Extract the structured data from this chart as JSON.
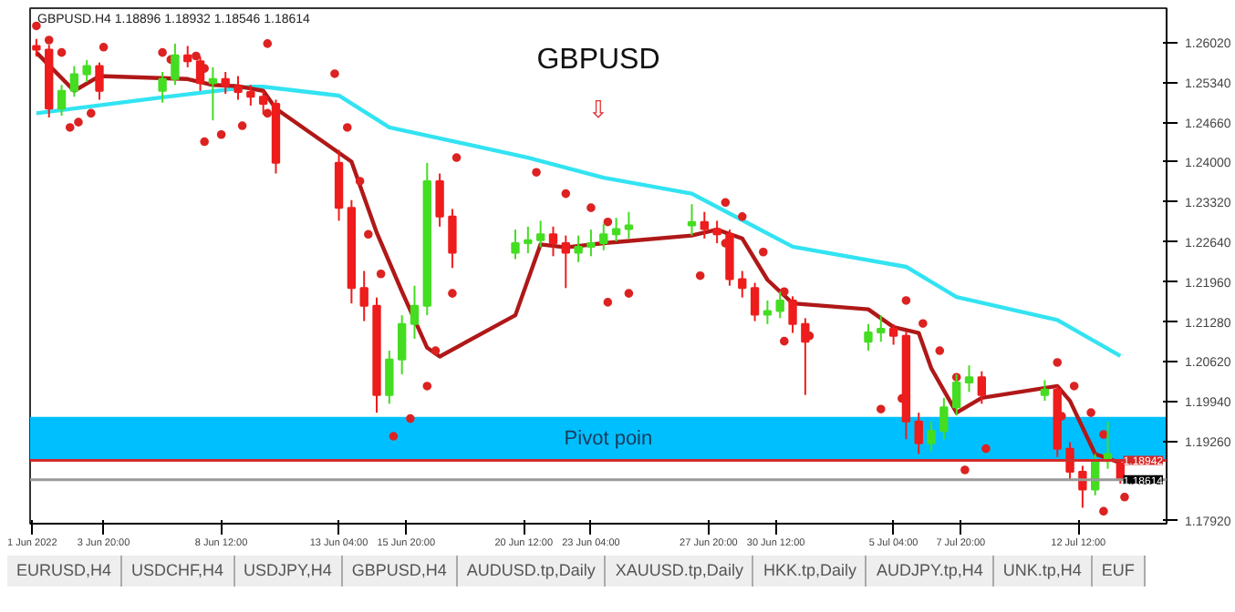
{
  "chart_data": {
    "type": "candlestick",
    "title": "GBPUSD",
    "annotations": [
      "GBPUSD.H4 1.18896 1.18932 1.18546 1.18614",
      "⇩",
      "EURUSD,H4",
      "USDCHF,H4",
      "USDJPY,H4",
      "GBPUSD,H4",
      "AUDUSD.tp,Daily",
      "XAUUSD.tp,Daily",
      "HKK.tp,Daily",
      "AUDJPY.tp,H4",
      "UNK.tp,H4",
      "EUF"
    ],
    "x": [
      "2022-06-01T04:00",
      "2022-06-01T16:00",
      "2022-06-02T04:00",
      "2022-06-02T16:00",
      "2022-06-03T04:00",
      "2022-06-03T16:00",
      "2022-06-06T04:00",
      "2022-06-06T16:00",
      "2022-06-07T04:00",
      "2022-06-07T16:00",
      "2022-06-08T04:00",
      "2022-06-08T16:00",
      "2022-06-09T04:00",
      "2022-06-09T16:00",
      "2022-06-10T04:00",
      "2022-06-10T16:00",
      "2022-06-13T04:00",
      "2022-06-13T16:00",
      "2022-06-14T04:00",
      "2022-06-14T16:00",
      "2022-06-15T04:00",
      "2022-06-15T16:00",
      "2022-06-16T04:00",
      "2022-06-16T16:00",
      "2022-06-17T04:00",
      "2022-06-17T16:00",
      "2022-06-20T04:00",
      "2022-06-20T16:00",
      "2022-06-21T04:00",
      "2022-06-21T16:00",
      "2022-06-22T04:00",
      "2022-06-22T16:00",
      "2022-06-23T04:00",
      "2022-06-23T16:00",
      "2022-06-24T04:00",
      "2022-06-24T16:00",
      "2022-06-27T04:00",
      "2022-06-27T16:00",
      "2022-06-28T04:00",
      "2022-06-28T16:00",
      "2022-06-29T04:00",
      "2022-06-29T16:00",
      "2022-06-30T04:00",
      "2022-06-30T16:00",
      "2022-07-01T04:00",
      "2022-07-01T16:00",
      "2022-07-04T04:00",
      "2022-07-04T16:00",
      "2022-07-05T04:00",
      "2022-07-05T16:00",
      "2022-07-06T04:00",
      "2022-07-06T16:00",
      "2022-07-07T04:00",
      "2022-07-07T16:00",
      "2022-07-08T04:00",
      "2022-07-08T16:00",
      "2022-07-11T04:00",
      "2022-07-11T16:00",
      "2022-07-12T04:00",
      "2022-07-12T16:00",
      "2022-07-13T04:00",
      "2022-07-13T16:00",
      "2022-07-14T04:00"
    ],
    "ohlc": [
      [
        1.2596,
        1.2608,
        1.2578,
        1.259
      ],
      [
        1.259,
        1.2598,
        1.2475,
        1.249
      ],
      [
        1.249,
        1.253,
        1.2478,
        1.252
      ],
      [
        1.252,
        1.2562,
        1.251,
        1.2548
      ],
      [
        1.2548,
        1.2572,
        1.2535,
        1.2562
      ],
      [
        1.2562,
        1.2568,
        1.2505,
        1.252
      ],
      [
        1.252,
        1.2552,
        1.25,
        1.254
      ],
      [
        1.254,
        1.26,
        1.253,
        1.258
      ],
      [
        1.258,
        1.2596,
        1.256,
        1.257
      ],
      [
        1.257,
        1.2578,
        1.252,
        1.2533
      ],
      [
        1.2533,
        1.256,
        1.247,
        1.254
      ],
      [
        1.254,
        1.2552,
        1.2515,
        1.2528
      ],
      [
        1.2528,
        1.2545,
        1.2505,
        1.2518
      ],
      [
        1.2518,
        1.253,
        1.2495,
        1.251
      ],
      [
        1.251,
        1.252,
        1.248,
        1.2498
      ],
      [
        1.2498,
        1.2505,
        1.238,
        1.2398
      ],
      [
        1.2398,
        1.242,
        1.23,
        1.2322
      ],
      [
        1.2322,
        1.2335,
        1.216,
        1.2186
      ],
      [
        1.2186,
        1.2215,
        1.213,
        1.2156
      ],
      [
        1.2156,
        1.217,
        1.1975,
        1.2005
      ],
      [
        1.2005,
        1.208,
        1.199,
        1.2065
      ],
      [
        1.2065,
        1.214,
        1.204,
        1.2125
      ],
      [
        1.2125,
        1.219,
        1.21,
        1.2156
      ],
      [
        1.2156,
        1.2398,
        1.214,
        1.2367
      ],
      [
        1.2367,
        1.238,
        1.229,
        1.2307
      ],
      [
        1.2307,
        1.232,
        1.222,
        1.2246
      ],
      [
        1.2246,
        1.2285,
        1.2235,
        1.2262
      ],
      [
        1.2262,
        1.229,
        1.2245,
        1.2267
      ],
      [
        1.2267,
        1.23,
        1.2255,
        1.2277
      ],
      [
        1.2277,
        1.229,
        1.224,
        1.2262
      ],
      [
        1.2262,
        1.2275,
        1.2186,
        1.2246
      ],
      [
        1.2246,
        1.2275,
        1.223,
        1.2256
      ],
      [
        1.2256,
        1.2285,
        1.224,
        1.2262
      ],
      [
        1.2262,
        1.2295,
        1.225,
        1.2277
      ],
      [
        1.2277,
        1.2305,
        1.2265,
        1.2286
      ],
      [
        1.2286,
        1.2315,
        1.227,
        1.2292
      ],
      [
        1.2292,
        1.2328,
        1.2275,
        1.2298
      ],
      [
        1.2298,
        1.2315,
        1.227,
        1.2286
      ],
      [
        1.2286,
        1.23,
        1.2262,
        1.2277
      ],
      [
        1.2277,
        1.2285,
        1.219,
        1.2201
      ],
      [
        1.2201,
        1.2215,
        1.217,
        1.2186
      ],
      [
        1.2186,
        1.2195,
        1.213,
        1.2141
      ],
      [
        1.2141,
        1.2165,
        1.2125,
        1.2147
      ],
      [
        1.2147,
        1.218,
        1.2135,
        1.2165
      ],
      [
        1.2165,
        1.2172,
        1.211,
        1.2125
      ],
      [
        1.2125,
        1.2135,
        1.2005,
        1.2095
      ],
      [
        1.2095,
        1.2125,
        1.208,
        1.2111
      ],
      [
        1.2111,
        1.214,
        1.2095,
        1.2117
      ],
      [
        1.2117,
        1.2125,
        1.209,
        1.2105
      ],
      [
        1.2105,
        1.2112,
        1.193,
        1.196
      ],
      [
        1.196,
        1.1975,
        1.1905,
        1.1923
      ],
      [
        1.1923,
        1.196,
        1.191,
        1.1944
      ],
      [
        1.1944,
        1.2,
        1.193,
        1.1984
      ],
      [
        1.1984,
        1.204,
        1.197,
        1.2026
      ],
      [
        1.2026,
        1.2055,
        1.201,
        1.2035
      ],
      [
        1.2035,
        1.2045,
        1.199,
        1.2005
      ],
      [
        1.2005,
        1.203,
        1.1995,
        1.2014
      ],
      [
        1.2014,
        1.202,
        1.19,
        1.1914
      ],
      [
        1.1914,
        1.1925,
        1.186,
        1.1875
      ],
      [
        1.1875,
        1.1885,
        1.1814,
        1.1845
      ],
      [
        1.1845,
        1.1905,
        1.1835,
        1.1893
      ],
      [
        1.1893,
        1.196,
        1.188,
        1.1905
      ],
      [
        1.18896,
        1.18932,
        1.18546,
        1.18614
      ]
    ],
    "colors": [
      "#ee1c1c",
      "#ee1c1c",
      "#44dd22",
      "#44dd22",
      "#44dd22",
      "#ee1c1c",
      "#44dd22",
      "#44dd22",
      "#ee1c1c",
      "#ee1c1c",
      "#44dd22",
      "#ee1c1c",
      "#ee1c1c",
      "#ee1c1c",
      "#ee1c1c",
      "#ee1c1c",
      "#ee1c1c",
      "#ee1c1c",
      "#ee1c1c",
      "#ee1c1c",
      "#44dd22",
      "#44dd22",
      "#44dd22",
      "#44dd22",
      "#ee1c1c",
      "#ee1c1c",
      "#44dd22",
      "#44dd22",
      "#44dd22",
      "#ee1c1c",
      "#ee1c1c",
      "#44dd22",
      "#44dd22",
      "#44dd22",
      "#44dd22",
      "#44dd22",
      "#44dd22",
      "#ee1c1c",
      "#ee1c1c",
      "#ee1c1c",
      "#ee1c1c",
      "#ee1c1c",
      "#44dd22",
      "#44dd22",
      "#ee1c1c",
      "#ee1c1c",
      "#44dd22",
      "#44dd22",
      "#ee1c1c",
      "#ee1c1c",
      "#ee1c1c",
      "#44dd22",
      "#44dd22",
      "#44dd22",
      "#44dd22",
      "#ee1c1c",
      "#44dd22",
      "#ee1c1c",
      "#ee1c1c",
      "#ee1c1c",
      "#44dd22",
      "#44dd22",
      "#ee1c1c"
    ],
    "series": [
      {
        "type": "line",
        "color": "#33e3f2",
        "x": [
          "2022-06-01T04:00",
          "2022-06-06T04:00",
          "2022-06-09T16:00",
          "2022-06-10T04:00",
          "2022-06-13T04:00",
          "2022-06-15T04:00",
          "2022-06-20T16:00",
          "2022-06-23T16:00",
          "2022-06-27T04:00",
          "2022-06-29T04:00",
          "2022-07-01T04:00",
          "2022-07-05T16:00",
          "2022-07-07T16:00",
          "2022-07-11T16:00",
          "2022-07-14T04:00"
        ],
        "values": [
          1.2482,
          1.2509,
          1.2527,
          1.2527,
          1.2512,
          1.2458,
          1.2407,
          1.2373,
          1.2346,
          1.2301,
          1.2256,
          1.2222,
          1.2171,
          1.2132,
          1.2071
        ]
      },
      {
        "type": "line",
        "color": "#b01818",
        "x": [
          "2022-06-01T04:00",
          "2022-06-02T16:00",
          "2022-06-03T16:00",
          "2022-06-07T04:00",
          "2022-06-08T04:00",
          "2022-06-09T04:00",
          "2022-06-10T04:00",
          "2022-06-10T16:00",
          "2022-06-13T16:00",
          "2022-06-14T16:00",
          "2022-06-15T16:00",
          "2022-06-16T16:00",
          "2022-06-17T04:00",
          "2022-06-20T04:00",
          "2022-06-21T04:00",
          "2022-06-22T04:00",
          "2022-06-23T16:00",
          "2022-06-27T04:00",
          "2022-06-28T04:00",
          "2022-06-29T04:00",
          "2022-06-30T04:00",
          "2022-07-01T04:00",
          "2022-07-04T04:00",
          "2022-07-05T04:00",
          "2022-07-06T04:00",
          "2022-07-06T16:00",
          "2022-07-07T16:00",
          "2022-07-08T16:00",
          "2022-07-11T16:00",
          "2022-07-12T04:00",
          "2022-07-13T04:00",
          "2022-07-14T04:00"
        ],
        "values": [
          1.2585,
          1.252,
          1.2545,
          1.254,
          1.253,
          1.2528,
          1.252,
          1.249,
          1.24,
          1.228,
          1.218,
          1.2085,
          1.207,
          1.214,
          1.226,
          1.2255,
          1.2262,
          1.2275,
          1.2285,
          1.227,
          1.22,
          1.216,
          1.215,
          1.212,
          1.211,
          1.205,
          1.1975,
          1.2,
          1.202,
          1.1995,
          1.1905,
          1.189
        ]
      },
      {
        "type": "scatter",
        "color": "#dd2222",
        "marker": "circle",
        "x": [
          "2022-06-01T04:00",
          "2022-06-01T16:00",
          "2022-06-02T04:00",
          "2022-06-02T12:00",
          "2022-06-02T20:00",
          "2022-06-03T08:00",
          "2022-06-03T20:00",
          "2022-06-06T04:00",
          "2022-06-06T12:00",
          "2022-06-07T12:00",
          "2022-06-07T20:00",
          "2022-06-07T20:00",
          "2022-06-08T12:00",
          "2022-06-09T08:00",
          "2022-06-10T08:00",
          "2022-06-10T08:00",
          "2022-06-13T00:00",
          "2022-06-13T12:00",
          "2022-06-14T00:00",
          "2022-06-14T08:00",
          "2022-06-14T20:00",
          "2022-06-15T08:00",
          "2022-06-16T00:00",
          "2022-06-16T16:00",
          "2022-06-17T00:00",
          "2022-06-17T16:00",
          "2022-06-17T20:00",
          "2022-06-21T00:00",
          "2022-06-22T04:00",
          "2022-06-23T04:00",
          "2022-06-23T20:00",
          "2022-06-23T20:00",
          "2022-06-24T16:00",
          "2022-06-27T12:00",
          "2022-06-28T12:00",
          "2022-06-28T12:00",
          "2022-06-29T04:00",
          "2022-06-30T00:00",
          "2022-06-30T20:00",
          "2022-06-30T20:00",
          "2022-07-01T20:00",
          "2022-07-04T16:00",
          "2022-07-05T12:00",
          "2022-07-05T16:00",
          "2022-07-06T08:00",
          "2022-07-07T00:00",
          "2022-07-07T16:00",
          "2022-07-08T00:00",
          "2022-07-08T20:00",
          "2022-07-11T20:00",
          "2022-07-11T16:00",
          "2022-07-12T08:00",
          "2022-07-13T00:00",
          "2022-07-13T12:00",
          "2022-07-13T12:00",
          "2022-07-14T08:00"
        ],
        "values": [
          1.263,
          1.2606,
          1.2585,
          1.2458,
          1.2467,
          1.2482,
          1.2594,
          1.2585,
          1.2573,
          1.2579,
          1.2558,
          1.2434,
          1.2446,
          1.2461,
          1.2482,
          1.26,
          1.2549,
          1.2458,
          1.2367,
          1.2277,
          1.221,
          1.1935,
          1.1965,
          1.202,
          1.208,
          1.2177,
          1.2407,
          1.2382,
          1.2346,
          1.2322,
          1.2298,
          1.2162,
          1.2177,
          1.2207,
          1.2262,
          1.2331,
          1.2307,
          1.2247,
          1.218,
          1.2096,
          1.2105,
          1.1981,
          1.1999,
          1.2165,
          1.2126,
          1.208,
          1.2035,
          1.1878,
          1.1914,
          1.1969,
          1.206,
          1.202,
          1.1975,
          1.1938,
          1.1808,
          1.1832
        ]
      }
    ],
    "ref_lines": [
      {
        "axis": "y",
        "value": 1.18942,
        "label": "1.18942",
        "color": "#d42a2a"
      },
      {
        "axis": "y",
        "value": 1.18614,
        "label": "1.18614",
        "color": "#999999"
      }
    ],
    "bands": [
      {
        "axis": "y",
        "from": 1.18942,
        "to": 1.1968,
        "label": "Pivot poin",
        "color": "#00bfff"
      }
    ],
    "xlim": [
      "2022-05-31T22:00",
      "2022-07-16T00:00"
    ],
    "ylim": [
      1.1787,
      1.266
    ],
    "xticks": [
      {
        "value": "2022-06-01T00:00",
        "label": "1 Jun 2022"
      },
      {
        "value": "2022-06-03T20:00",
        "label": "3 Jun 20:00"
      },
      {
        "value": "2022-06-08T12:00",
        "label": "8 Jun 12:00"
      },
      {
        "value": "2022-06-13T04:00",
        "label": "13 Jun 04:00"
      },
      {
        "value": "2022-06-15T20:00",
        "label": "15 Jun 20:00"
      },
      {
        "value": "2022-06-20T12:00",
        "label": "20 Jun 12:00"
      },
      {
        "value": "2022-06-23T04:00",
        "label": "23 Jun 04:00"
      },
      {
        "value": "2022-06-27T20:00",
        "label": "27 Jun 20:00"
      },
      {
        "value": "2022-06-30T12:00",
        "label": "30 Jun 12:00"
      },
      {
        "value": "2022-07-05T04:00",
        "label": "5 Jul 04:00"
      },
      {
        "value": "2022-07-07T20:00",
        "label": "7 Jul 20:00"
      },
      {
        "value": "2022-07-12T12:00",
        "label": "12 Jul 12:00"
      }
    ],
    "yticks": [
      {
        "value": 1.1792,
        "label": "1.17920"
      },
      {
        "value": 1.1926,
        "label": "1.19260"
      },
      {
        "value": 1.1994,
        "label": "1.19940"
      },
      {
        "value": 1.2062,
        "label": "1.20620"
      },
      {
        "value": 1.2128,
        "label": "1.21280"
      },
      {
        "value": 1.2196,
        "label": "1.21960"
      },
      {
        "value": 1.2264,
        "label": "1.22640"
      },
      {
        "value": 1.2332,
        "label": "1.23320"
      },
      {
        "value": 1.24,
        "label": "1.24000"
      },
      {
        "value": 1.2466,
        "label": "1.24660"
      },
      {
        "value": 1.2534,
        "label": "1.25340"
      },
      {
        "value": 1.2602,
        "label": "1.26020"
      }
    ],
    "grid": false
  }
}
